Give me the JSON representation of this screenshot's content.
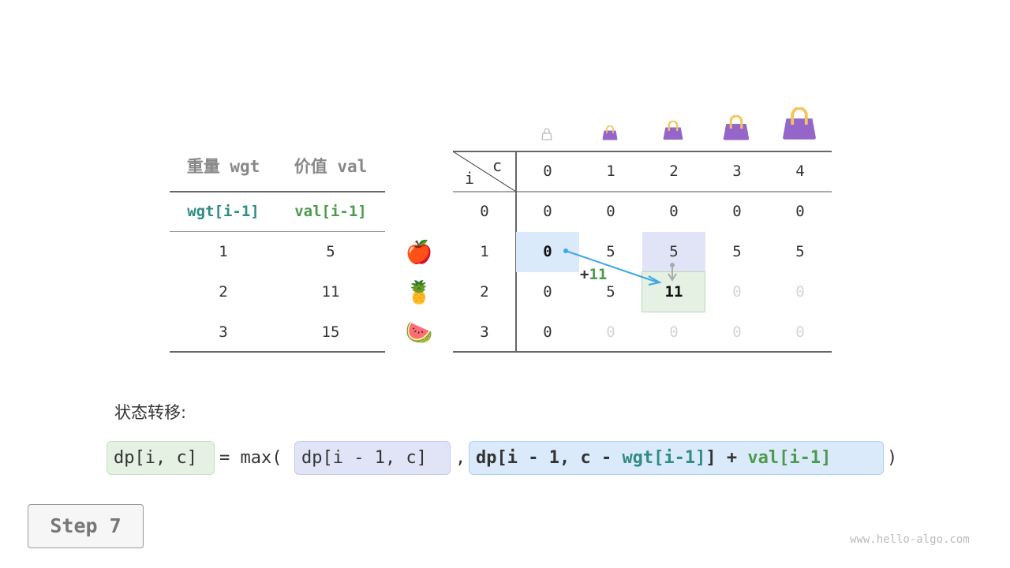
{
  "items_table": {
    "headers": [
      "重量 wgt",
      "价值 val"
    ],
    "subheaders": [
      "wgt[i-1]",
      "val[i-1]"
    ],
    "rows": [
      [
        "1",
        "5"
      ],
      [
        "2",
        "11"
      ],
      [
        "3",
        "15"
      ]
    ],
    "item_icons": [
      "apple",
      "pineapple",
      "watermelon"
    ],
    "item_glyphs": [
      "🍎",
      "🍍",
      "🍉"
    ]
  },
  "dp_table": {
    "row_axis": "i",
    "col_axis": "c",
    "col_labels": [
      "0",
      "1",
      "2",
      "3",
      "4"
    ],
    "row_labels": [
      "0",
      "1",
      "2",
      "3"
    ],
    "cells": [
      [
        "0",
        "0",
        "0",
        "0",
        "0"
      ],
      [
        "0",
        "5",
        "5",
        "5",
        "5"
      ],
      [
        "0",
        "5",
        "11",
        "0",
        "0"
      ],
      [
        "0",
        "0",
        "0",
        "0",
        "0"
      ]
    ],
    "faded": [
      [
        false,
        false,
        false,
        false,
        false
      ],
      [
        false,
        false,
        false,
        false,
        false
      ],
      [
        false,
        false,
        false,
        true,
        true
      ],
      [
        false,
        true,
        true,
        true,
        true
      ]
    ],
    "capacity_icons": [
      "empty-bag-icon",
      "bag-icon",
      "bag-icon",
      "bag-icon",
      "bag-icon"
    ],
    "increment_label": "+",
    "increment_value": "11"
  },
  "transition": {
    "label": "状态转移:",
    "lhs": "dp[i, c]",
    "eq": "= max(",
    "opt1": "dp[i - 1, c]",
    "comma": ",",
    "opt2_a": "dp[i - 1, c - ",
    "opt2_wgt": "wgt[i-1]",
    "opt2_b": "] + ",
    "opt2_val": "val[i-1]",
    "close": ")"
  },
  "step_label": "Step 7",
  "watermark": "www.hello-algo.com",
  "colors": {
    "teal": "#2f8c84",
    "green": "#4c9a4c",
    "blue_hl": "#dbeafa",
    "purple_hl": "#e1e4f7",
    "green_hl": "#e4f1e3",
    "bag": "#9466c9",
    "handle": "#f7c35a"
  }
}
